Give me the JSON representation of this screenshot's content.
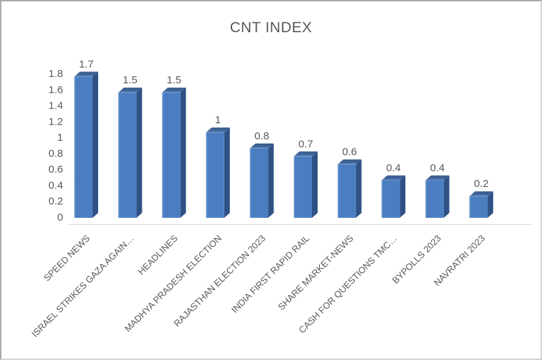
{
  "chart_data": {
    "type": "bar",
    "style": "3d-column",
    "title": "CNT INDEX",
    "categories": [
      "SPEED NEWS",
      "ISRAEL STRIKES GAZA AGAIN…",
      "HEADLINES",
      "MADHYA PRADESH ELECTION",
      "RAJASTHAN ELECTION 2023",
      "INDIA FIRST RAPID RAIL",
      "SHARE MARKET-NEWS",
      "CASH FOR QUESTIONS TMC…",
      "BYPOLLS 2023",
      "NAVRATRI 2023"
    ],
    "values": [
      1.7,
      1.5,
      1.5,
      1,
      0.8,
      0.7,
      0.6,
      0.4,
      0.4,
      0.2
    ],
    "value_labels": [
      "1.7",
      "1.5",
      "1.5",
      "1",
      "0.8",
      "0.7",
      "0.6",
      "0.4",
      "0.4",
      "0.2"
    ],
    "xlabel": "",
    "ylabel": "",
    "ylim": [
      0,
      1.8
    ],
    "y_ticks": [
      "1.8",
      "1.6",
      "1.4",
      "1.2",
      "1",
      "0.8",
      "0.6",
      "0.4",
      "0.2",
      "0"
    ],
    "grid": false,
    "legend_position": "none",
    "x_label_rotation_deg": 45
  },
  "theme": {
    "bar_front_color": "#4b7ec1",
    "bar_front_light": "#6e9bce",
    "bar_side_color": "#2e5284",
    "bar_top_dark": "#35598d",
    "bar_top_mid": "#44699f",
    "bar_top_light": "#7da3d0",
    "text_color": "#595959",
    "axis_line_color": "#d9d9d9",
    "background_color": "#ffffff",
    "frame_border_color": "#a9a9a9"
  }
}
